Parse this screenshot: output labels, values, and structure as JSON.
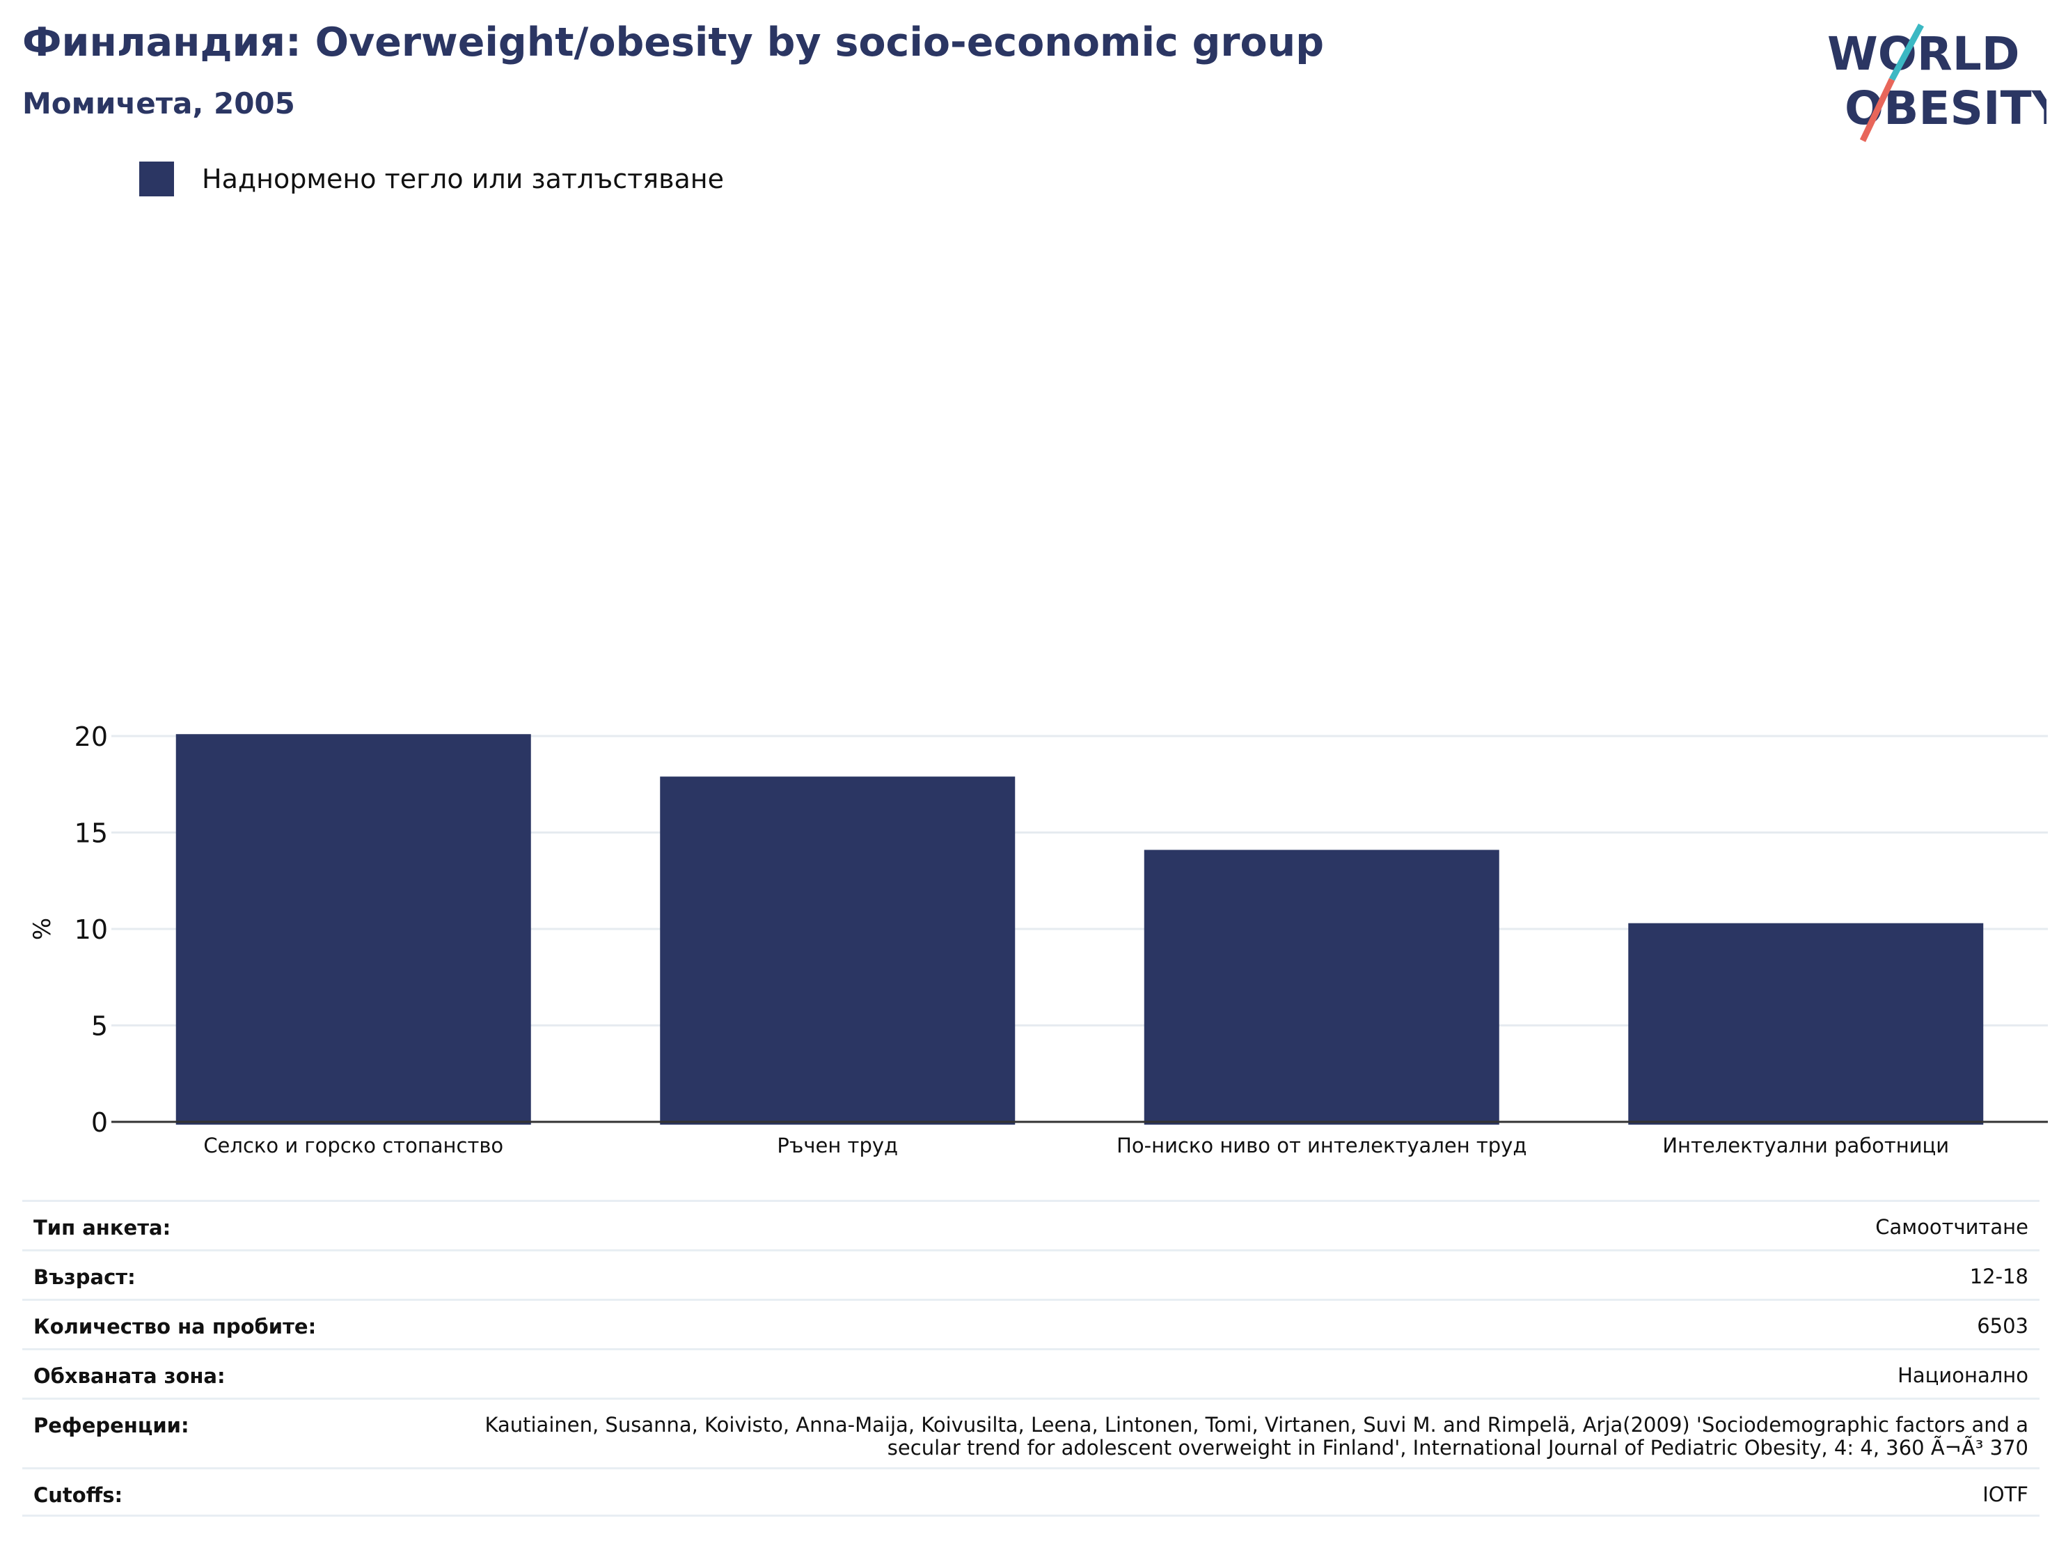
{
  "header": {
    "title": "Финландия: Overweight/obesity by socio-economic group",
    "subtitle": "Момичета, 2005"
  },
  "logo": {
    "line1": "WORLD",
    "line2": "OBESITY"
  },
  "colors": {
    "bar": "#2b3663",
    "title": "#2b3663",
    "grid": "#e6ebf0",
    "logo_teal": "#3bb8c3",
    "logo_coral": "#e8665a"
  },
  "chart_data": {
    "type": "bar",
    "categories": [
      "Селско и горско стопанство",
      "Ръчен труд",
      "По-ниско ниво от интелектуален труд",
      "Интелектуални работници"
    ],
    "series": [
      {
        "name": "Наднормено тегло или затлъстяване",
        "values": [
          20.1,
          17.9,
          14.1,
          10.3
        ]
      }
    ],
    "ylabel": "%",
    "ylim": [
      0,
      20.9
    ],
    "yticks": [
      0,
      5,
      10,
      15,
      20
    ],
    "grid": true,
    "legend_position": "top-left"
  },
  "meta": [
    {
      "key": "Тип анкета:",
      "value": "Самоотчитане"
    },
    {
      "key": "Възраст:",
      "value": "12-18"
    },
    {
      "key": "Количество на пробите:",
      "value": "6503"
    },
    {
      "key": "Обхваната зона:",
      "value": "Национално"
    },
    {
      "key": "Референции:",
      "value": "Kautiainen, Susanna, Koivisto, Anna-Maija, Koivusilta, Leena, Lintonen, Tomi, Virtanen, Suvi M. and Rimpelä, Arja(2009) 'Sociodemographic factors and a secular trend for adolescent overweight in Finland', International Journal of Pediatric Obesity, 4: 4, 360 Ã¬Ã³ 370"
    },
    {
      "key": "Cutoffs:",
      "value": "IOTF"
    }
  ]
}
